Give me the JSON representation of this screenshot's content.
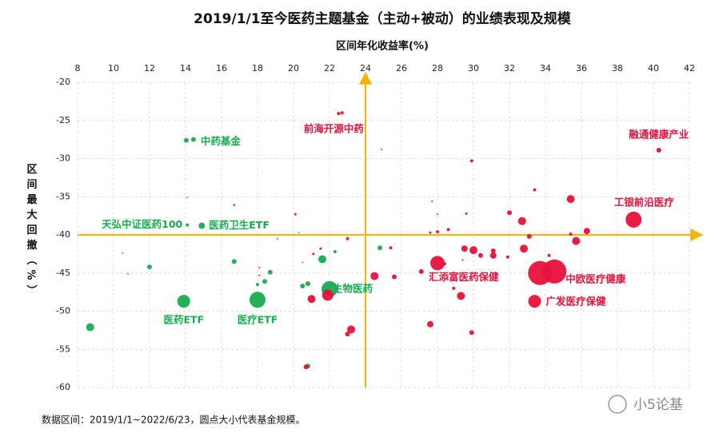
{
  "chart_data": {
    "type": "scatter",
    "title": "2019/1/1至今医药主题基金（主动+被动）的业绩表现及规模",
    "x_label": "区间年化收益率(%)",
    "y_label": "区间最大回撤（%）",
    "footnote": "数据区间：2019/1/1~2022/6/23，圆点大小代表基金规模。",
    "watermark": "小5论基",
    "xlim": [
      8,
      42
    ],
    "xticks": [
      8,
      10,
      12,
      14,
      16,
      18,
      20,
      22,
      24,
      26,
      28,
      30,
      32,
      34,
      36,
      38,
      40,
      42
    ],
    "ylim": [
      -60,
      -20
    ],
    "yticks": [
      -60,
      -55,
      -50,
      -45,
      -40,
      -35,
      -30,
      -25,
      -20
    ],
    "grid": true,
    "ref_x": 24,
    "ref_y": -40,
    "ref_color": "#f5b400",
    "series": [
      {
        "color": "#19ab50",
        "x": [
          14.04,
          14.44,
          14.1,
          16.7,
          14.1,
          14.9,
          20.3,
          10.5,
          12.0,
          10.8,
          16.7,
          18.7,
          18.4,
          18.0,
          21.6,
          22.3,
          20.8,
          20.5,
          20.5,
          22.0,
          13.9,
          18.0,
          8.7,
          20.8,
          24.8
        ],
        "values": [
          -27.6,
          -27.5,
          -35.1,
          -36.1,
          -38.7,
          -38.8,
          -39.7,
          -42.4,
          -44.2,
          -45.1,
          -43.5,
          -44.9,
          -46.1,
          -46.5,
          -43.2,
          -42.2,
          -46.4,
          -46.7,
          -43.6,
          -47.1,
          -48.7,
          -48.5,
          -52.1,
          -57.2,
          -41.7
        ],
        "sizes": [
          3,
          3,
          1,
          1.5,
          2,
          4,
          1,
          1,
          3,
          1,
          3,
          3,
          3,
          2,
          5,
          2,
          3,
          3,
          1,
          10,
          8,
          10,
          5,
          3,
          3
        ],
        "labels": [
          null,
          "中药基金",
          null,
          null,
          "天弘中证医药100",
          "医药卫生ETF",
          null,
          null,
          null,
          null,
          null,
          null,
          null,
          null,
          null,
          null,
          null,
          null,
          null,
          "生物医药",
          "医药ETF",
          "医疗ETF",
          null,
          null,
          null
        ]
      },
      {
        "color": "#e8103c",
        "x": [
          22.5,
          22.7,
          24.9,
          29.9,
          40.3,
          33.4,
          35.4,
          27.7,
          28.0,
          29.6,
          32.0,
          32.7,
          38.9,
          36.3,
          35.4,
          35.7,
          33.1,
          28.6,
          28.0,
          27.6,
          20.1,
          19.1,
          23.0,
          21.1,
          21.5,
          25.4,
          29.5,
          30.0,
          30.4,
          31.1,
          31.1,
          31.9,
          32.8,
          28.0,
          27.1,
          29.4,
          25.6,
          24.5,
          28.4,
          34.5,
          33.7,
          34.2,
          28.9,
          29.3,
          21.0,
          21.9,
          33.4,
          27.6,
          29.9,
          23.2,
          23.0,
          20.7,
          18.1,
          18.1
        ],
        "values": [
          -24.1,
          -24.0,
          -28.8,
          -30.3,
          -28.9,
          -34.1,
          -35.3,
          -35.6,
          -37.3,
          -37.2,
          -37.1,
          -38.2,
          -38.0,
          -39.5,
          -39.9,
          -40.8,
          -40.2,
          -39.3,
          -39.6,
          -39.7,
          -37.3,
          -40.5,
          -40.5,
          -42.5,
          -41.8,
          -41.7,
          -41.8,
          -42.0,
          -42.7,
          -42.1,
          -42.7,
          -42.9,
          -41.8,
          -43.7,
          -44.8,
          -43.3,
          -45.5,
          -45.4,
          -43.8,
          -44.8,
          -45.0,
          -42.7,
          -47.0,
          -48.0,
          -48.4,
          -47.9,
          -48.7,
          -51.7,
          -52.8,
          -52.4,
          -53.0,
          -57.3,
          -44.3,
          -45.3
        ],
        "sizes": [
          2,
          2,
          1,
          2,
          3,
          2,
          5,
          1,
          1,
          1.5,
          3,
          5,
          10,
          4,
          2,
          5,
          3,
          2,
          2,
          1.5,
          1.5,
          1,
          2,
          1.5,
          1.5,
          2,
          4,
          5,
          3,
          3,
          4,
          2,
          5,
          9,
          3,
          1,
          3,
          5,
          2,
          15,
          15,
          2,
          2,
          5,
          5,
          7,
          8,
          4,
          3,
          5,
          3,
          3,
          1,
          1
        ],
        "labels": [
          "前海开源中药",
          null,
          null,
          null,
          "融通健康产业",
          null,
          null,
          null,
          null,
          null,
          null,
          null,
          "工银前沿医疗",
          null,
          null,
          null,
          null,
          null,
          null,
          null,
          null,
          null,
          null,
          null,
          null,
          null,
          null,
          null,
          null,
          null,
          null,
          null,
          null,
          "汇添富医药保健",
          null,
          null,
          null,
          null,
          null,
          "中欧医疗健康",
          null,
          null,
          null,
          null,
          null,
          null,
          "广发医疗保健",
          null,
          null,
          null,
          null,
          null,
          null,
          null
        ]
      }
    ]
  }
}
